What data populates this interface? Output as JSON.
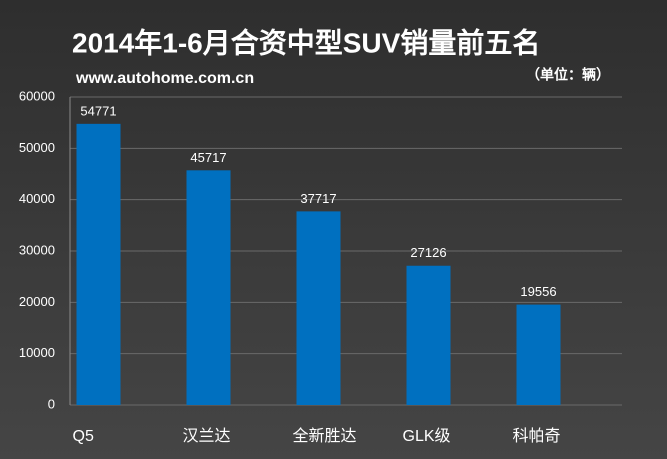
{
  "chart_data": {
    "type": "bar",
    "title": "2014年1-6月合资中型SUV销量前五名",
    "subtitle": "www.autohome.com.cn",
    "unit_label": "（单位：辆）",
    "categories": [
      "Q5",
      "汉兰达",
      "全新胜达",
      "GLK级",
      "科帕奇"
    ],
    "values": [
      54771,
      45717,
      37717,
      27126,
      19556
    ],
    "color": "#0070c0",
    "ylim": [
      0,
      60000
    ],
    "yticks": [
      0,
      10000,
      20000,
      30000,
      40000,
      50000,
      60000
    ],
    "grid": true
  }
}
